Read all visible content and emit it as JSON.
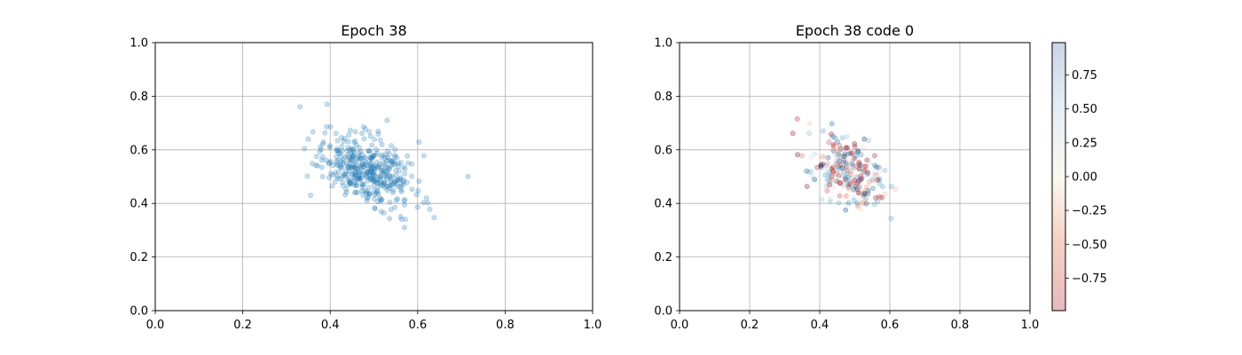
{
  "chart_data": [
    {
      "type": "scatter",
      "title": "Epoch 38",
      "xlabel": "",
      "ylabel": "",
      "xlim": [
        0.0,
        1.0
      ],
      "ylim": [
        0.0,
        1.0
      ],
      "xticks": [
        "0.0",
        "0.2",
        "0.4",
        "0.6",
        "0.8",
        "1.0"
      ],
      "yticks": [
        "0.0",
        "0.2",
        "0.4",
        "0.6",
        "0.8",
        "1.0"
      ],
      "grid": true,
      "marker_color": "#1f77b4",
      "cluster": {
        "center": [
          0.48,
          0.525
        ],
        "spread": [
          0.055,
          0.07
        ],
        "correlation": -0.45,
        "count": 400
      },
      "highlighted_points": [
        {
          "x": 0.35,
          "y": 0.64
        },
        {
          "x": 0.355,
          "y": 0.43
        },
        {
          "x": 0.715,
          "y": 0.5
        },
        {
          "x": 0.53,
          "y": 0.71
        },
        {
          "x": 0.57,
          "y": 0.31
        },
        {
          "x": 0.62,
          "y": 0.42
        }
      ]
    },
    {
      "type": "scatter",
      "title": "Epoch 38 code 0",
      "xlabel": "",
      "ylabel": "",
      "xlim": [
        0.0,
        1.0
      ],
      "ylim": [
        0.0,
        1.0
      ],
      "xticks": [
        "0.0",
        "0.2",
        "0.4",
        "0.6",
        "0.8",
        "1.0"
      ],
      "yticks": [
        "0.0",
        "0.2",
        "0.4",
        "0.6",
        "0.8",
        "1.0"
      ],
      "grid": true,
      "colormap": "RdBu",
      "colorbar": {
        "range": [
          -0.99,
          0.99
        ],
        "ticks": [
          0.75,
          0.5,
          0.25,
          0.0,
          -0.25,
          -0.5,
          -0.75
        ],
        "tick_labels": [
          "0.75",
          "0.50",
          "0.25",
          "0.00",
          "−0.25",
          "−0.50",
          "−0.75"
        ]
      },
      "cluster": {
        "center": [
          0.48,
          0.525
        ],
        "spread": [
          0.055,
          0.07
        ],
        "correlation": -0.45,
        "count": 260
      }
    }
  ]
}
